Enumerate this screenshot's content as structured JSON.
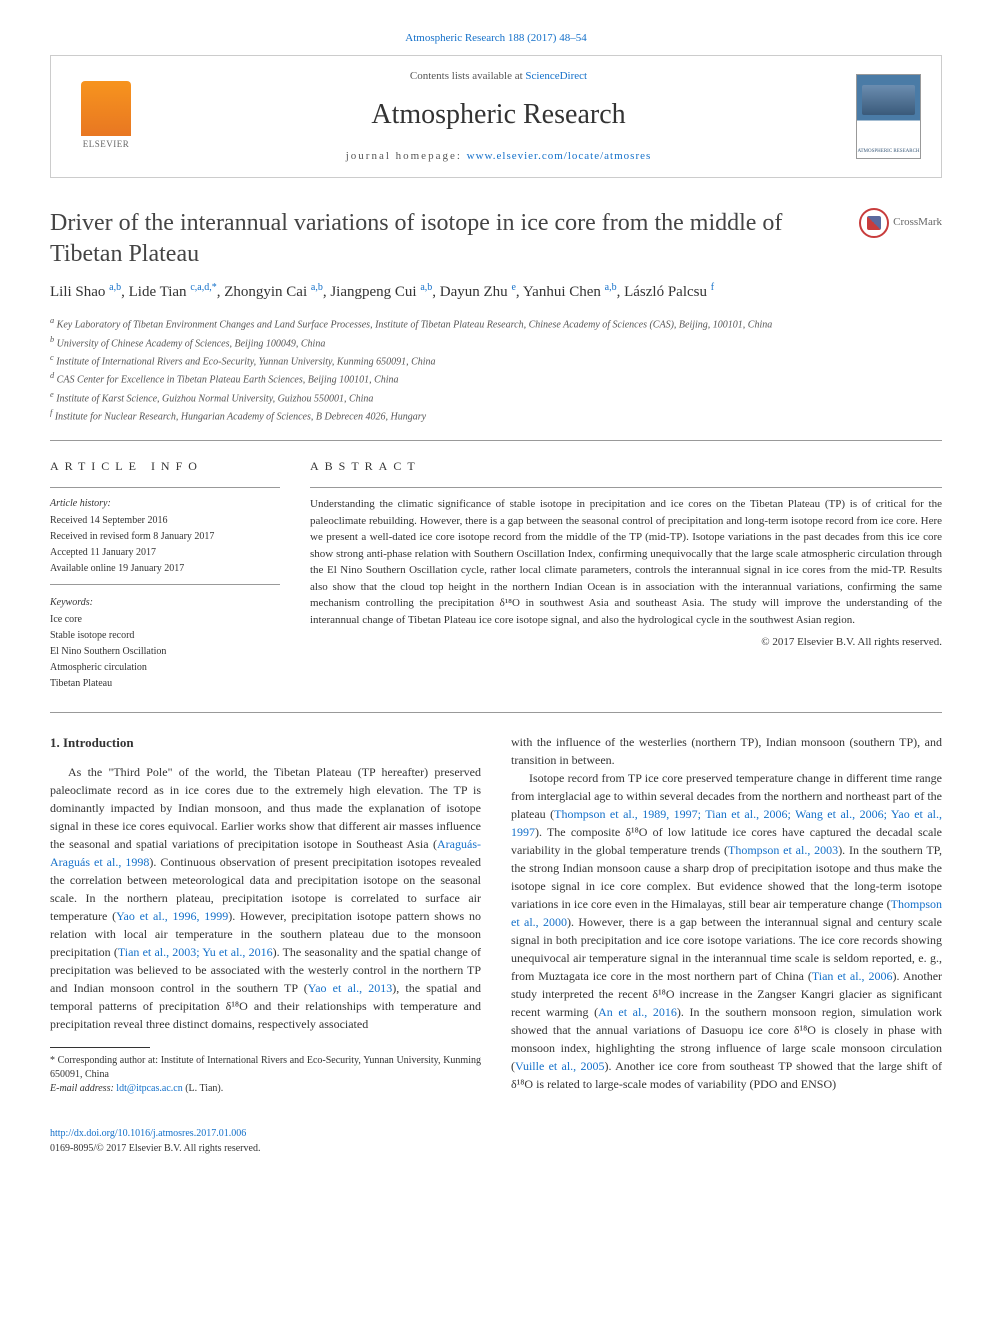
{
  "top_link": "Atmospheric Research 188 (2017) 48–54",
  "header": {
    "contents_prefix": "Contents lists available at ",
    "contents_link": "ScienceDirect",
    "journal_name": "Atmospheric Research",
    "homepage_prefix": "journal homepage: ",
    "homepage_url": "www.elsevier.com/locate/atmosres",
    "publisher": "ELSEVIER",
    "cover_text": "ATMOSPHERIC RESEARCH"
  },
  "article": {
    "title": "Driver of the interannual variations of isotope in ice core from the middle of Tibetan Plateau",
    "crossmark": "CrossMark",
    "authors_html": "Lili Shao <sup>a,b</sup>, Lide Tian <sup>c,a,d,*</sup>, Zhongyin Cai <sup>a,b</sup>, Jiangpeng Cui <sup>a,b</sup>, Dayun Zhu <sup>e</sup>, Yanhui Chen <sup>a,b</sup>, László Palcsu <sup>f</sup>",
    "affiliations": [
      "a Key Laboratory of Tibetan Environment Changes and Land Surface Processes, Institute of Tibetan Plateau Research, Chinese Academy of Sciences (CAS), Beijing, 100101, China",
      "b University of Chinese Academy of Sciences, Beijing 100049, China",
      "c Institute of International Rivers and Eco-Security, Yunnan University, Kunming 650091, China",
      "d CAS Center for Excellence in Tibetan Plateau Earth Sciences, Beijing 100101, China",
      "e Institute of Karst Science, Guizhou Normal University, Guizhou 550001, China",
      "f Institute for Nuclear Research, Hungarian Academy of Sciences, B Debrecen 4026, Hungary"
    ]
  },
  "info": {
    "heading": "article info",
    "history_label": "Article history:",
    "history": [
      "Received 14 September 2016",
      "Received in revised form 8 January 2017",
      "Accepted 11 January 2017",
      "Available online 19 January 2017"
    ],
    "keywords_label": "Keywords:",
    "keywords": [
      "Ice core",
      "Stable isotope record",
      "El Nino Southern Oscillation",
      "Atmospheric circulation",
      "Tibetan Plateau"
    ]
  },
  "abstract": {
    "heading": "abstract",
    "text": "Understanding the climatic significance of stable isotope in precipitation and ice cores on the Tibetan Plateau (TP) is of critical for the paleoclimate rebuilding. However, there is a gap between the seasonal control of precipitation and long-term isotope record from ice core. Here we present a well-dated ice core isotope record from the middle of the TP (mid-TP). Isotope variations in the past decades from this ice core show strong anti-phase relation with Southern Oscillation Index, confirming unequivocally that the large scale atmospheric circulation through the El Nino Southern Oscillation cycle, rather local climate parameters, controls the interannual signal in ice cores from the mid-TP. Results also show that the cloud top height in the northern Indian Ocean is in association with the interannual variations, confirming the same mechanism controlling the precipitation δ¹⁸O in southwest Asia and southeast Asia. The study will improve the understanding of the interannual change of Tibetan Plateau ice core isotope signal, and also the hydrological cycle in the southwest Asian region.",
    "copyright": "© 2017 Elsevier B.V. All rights reserved."
  },
  "body": {
    "section_heading": "1. Introduction",
    "col1_p1": "As the \"Third Pole\" of the world, the Tibetan Plateau (TP hereafter) preserved paleoclimate record as in ice cores due to the extremely high elevation. The TP is dominantly impacted by Indian monsoon, and thus made the explanation of isotope signal in these ice cores equivocal. Earlier works show that different air masses influence the seasonal and spatial variations of precipitation isotope in Southeast Asia (Araguás-Araguás et al., 1998). Continuous observation of present precipitation isotopes revealed the correlation between meteorological data and precipitation isotope on the seasonal scale. In the northern plateau, precipitation isotope is correlated to surface air temperature (Yao et al., 1996, 1999). However, precipitation isotope pattern shows no relation with local air temperature in the southern plateau due to the monsoon precipitation (Tian et al., 2003; Yu et al., 2016). The seasonality and the spatial change of precipitation was believed to be associated with the westerly control in the northern TP and Indian monsoon control in the southern TP (Yao et al., 2013), the spatial and temporal patterns of precipitation δ¹⁸O and their relationships with temperature and precipitation reveal three distinct domains, respectively associated",
    "col2_p1": "with the influence of the westerlies (northern TP), Indian monsoon (southern TP), and transition in between.",
    "col2_p2": "Isotope record from TP ice core preserved temperature change in different time range from interglacial age to within several decades from the northern and northeast part of the plateau (Thompson et al., 1989, 1997; Tian et al., 2006; Wang et al., 2006; Yao et al., 1997). The composite δ¹⁸O of low latitude ice cores have captured the decadal scale variability in the global temperature trends (Thompson et al., 2003). In the southern TP, the strong Indian monsoon cause a sharp drop of precipitation isotope and thus make the isotope signal in ice core complex. But evidence showed that the long-term isotope variations in ice core even in the Himalayas, still bear air temperature change (Thompson et al., 2000). However, there is a gap between the interannual signal and century scale signal in both precipitation and ice core isotope variations. The ice core records showing unequivocal air temperature signal in the interannual time scale is seldom reported, e. g., from Muztagata ice core in the most northern part of China (Tian et al., 2006). Another study interpreted the recent δ¹⁸O increase in the Zangser Kangri glacier as significant recent warming (An et al., 2016). In the southern monsoon region, simulation work showed that the annual variations of Dasuopu ice core δ¹⁸O is closely in phase with monsoon index, highlighting the strong influence of large scale monsoon circulation (Vuille et al., 2005). Another ice core from southeast TP showed that the large shift of δ¹⁸O is related to large-scale modes of variability (PDO and ENSO)"
  },
  "footnote": {
    "corresponding": "* Corresponding author at: Institute of International Rivers and Eco-Security, Yunnan University, Kunming 650091, China",
    "email_label": "E-mail address: ",
    "email": "ldt@itpcas.ac.cn",
    "email_suffix": " (L. Tian)."
  },
  "footer": {
    "doi": "http://dx.doi.org/10.1016/j.atmosres.2017.01.006",
    "issn": "0169-8095/© 2017 Elsevier B.V. All rights reserved."
  },
  "colors": {
    "link": "#1470c9",
    "text": "#333333",
    "elsevier_orange": "#f7941e",
    "crossmark_red": "#c83c3c",
    "crossmark_blue": "#5b6a9e"
  }
}
